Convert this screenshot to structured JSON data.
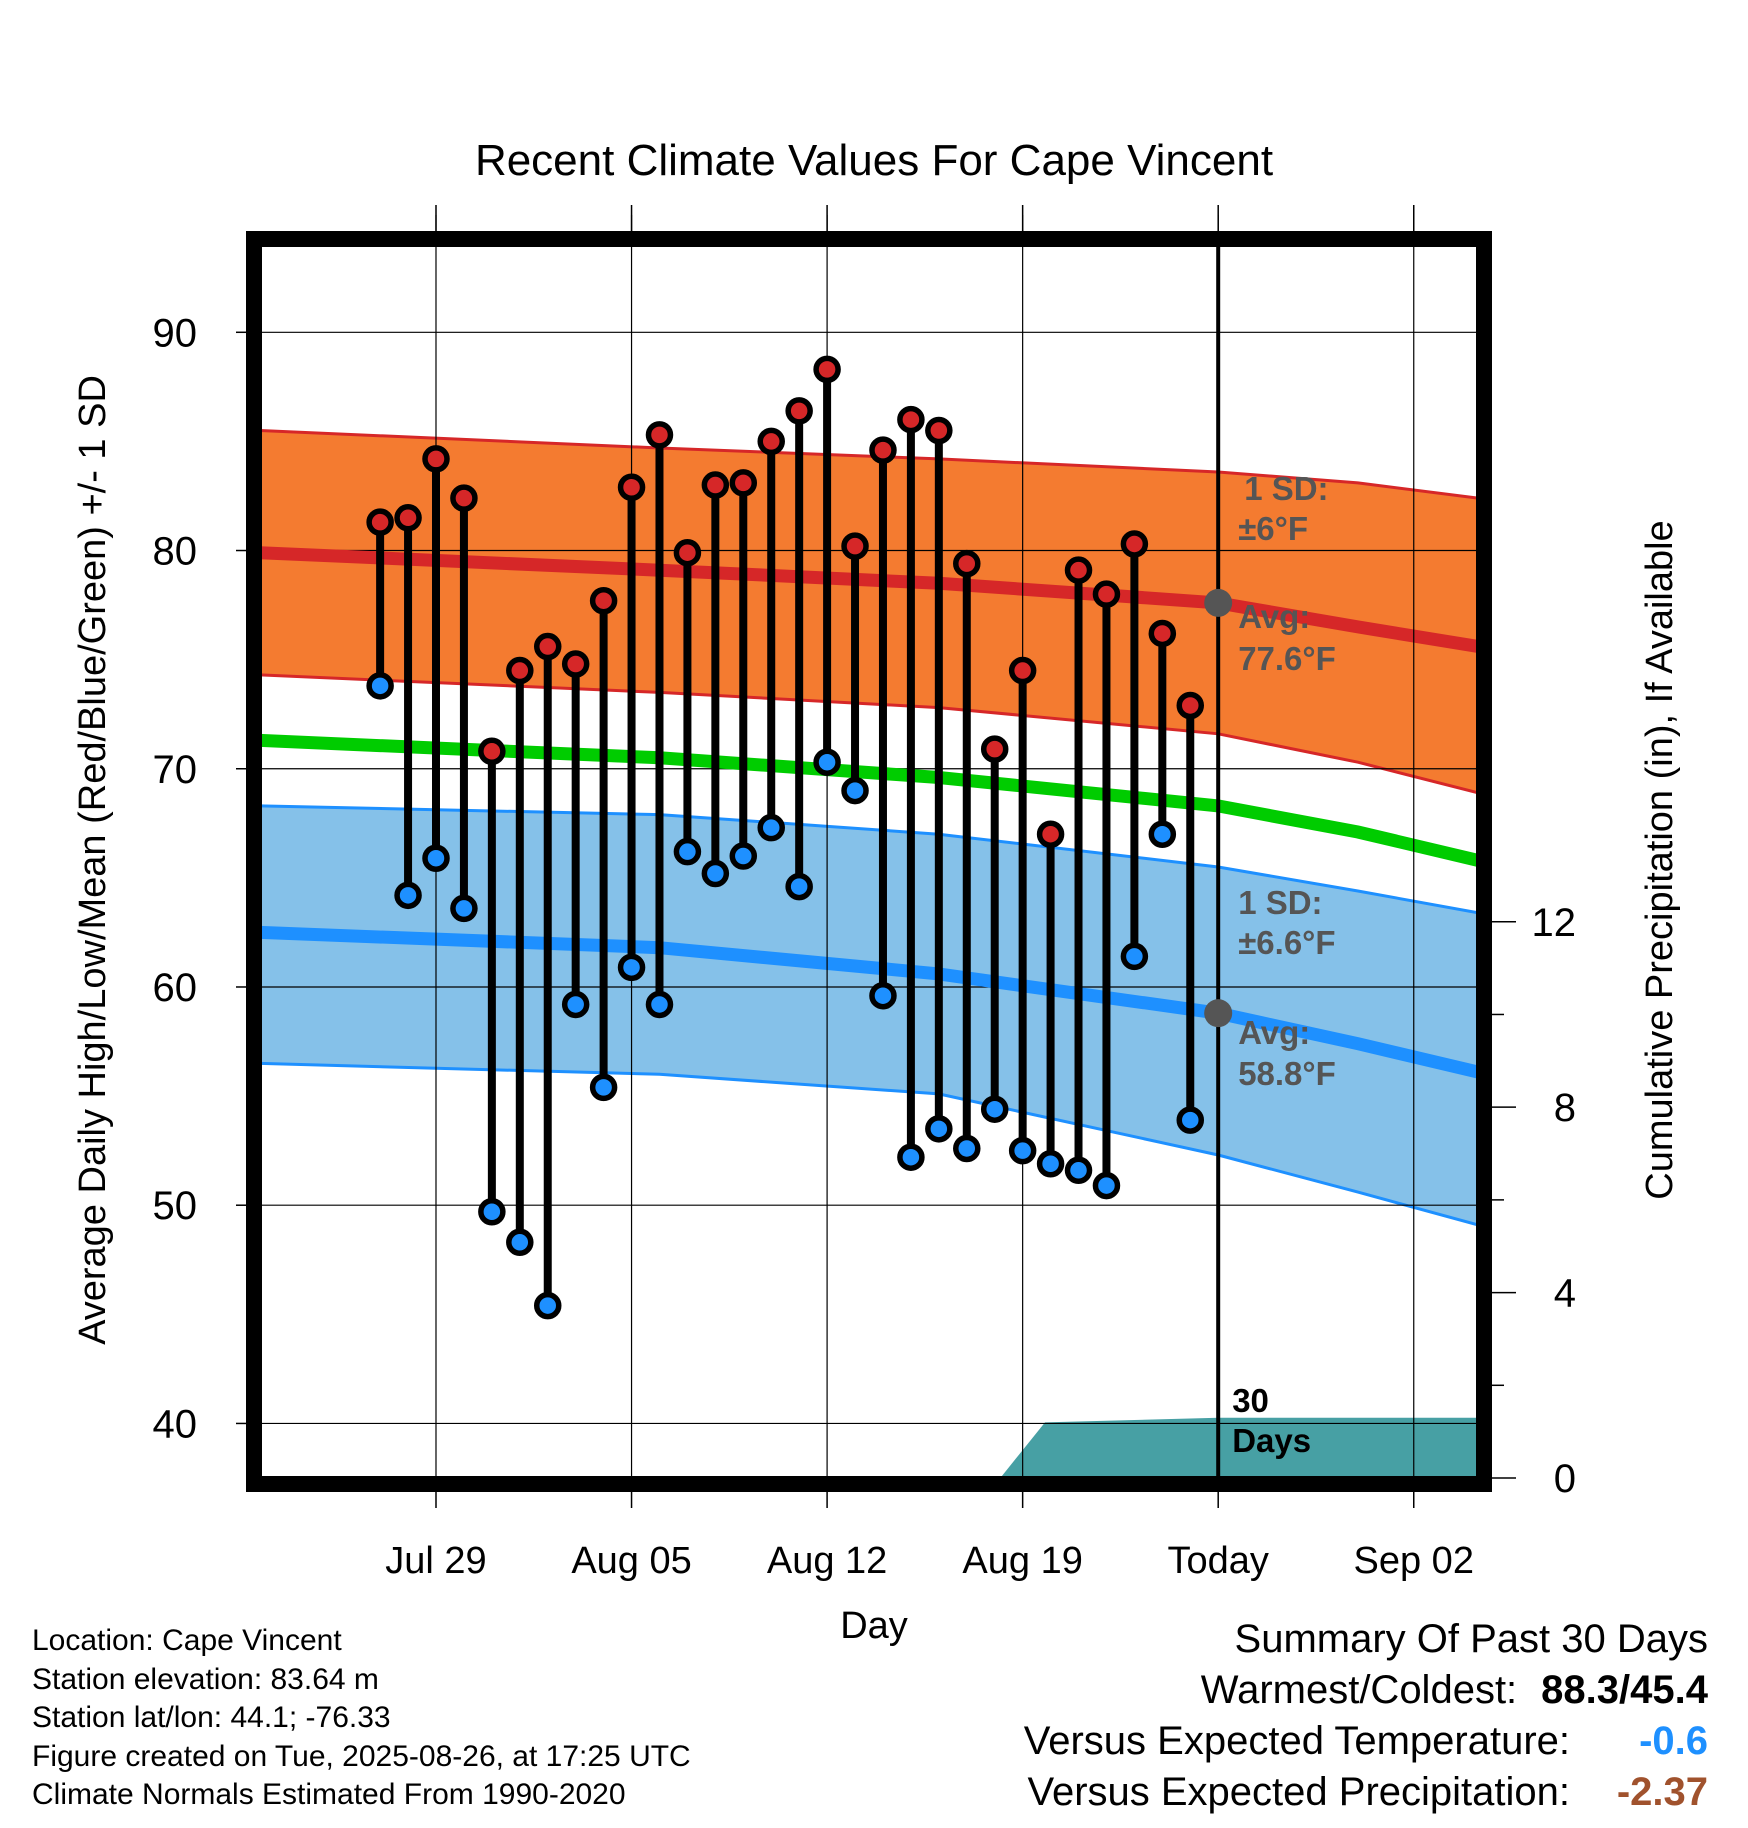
{
  "chart_data": {
    "type": "line",
    "title": "Recent Climate Values For Cape Vincent",
    "xlabel": "Day",
    "ylabel": "Average Daily High/Low/Mean (Red/Blue/Green) +/- 1 SD",
    "y2label": "Cumulative Precipitation (in), If Available",
    "ylim": [
      37.5,
      94
    ],
    "y2lim": [
      0,
      26.6
    ],
    "yticks": [
      40,
      50,
      60,
      70,
      80,
      90
    ],
    "y2ticks": [
      0,
      4,
      8,
      12
    ],
    "xlim_days": [
      -34.3,
      9.3
    ],
    "xticks": [
      {
        "day": -28,
        "label": "Jul 29"
      },
      {
        "day": -21,
        "label": "Aug 05"
      },
      {
        "day": -14,
        "label": "Aug 12"
      },
      {
        "day": -7,
        "label": "Aug 19"
      },
      {
        "day": 0,
        "label": "Today"
      },
      {
        "day": 7,
        "label": "Sep 02"
      }
    ],
    "grid": true,
    "days": [
      -30,
      -29,
      -28,
      -27,
      -26,
      -25,
      -24,
      -23,
      -22,
      -21,
      -20,
      -19,
      -18,
      -17,
      -16,
      -15,
      -14,
      -13,
      -12,
      -11,
      -10,
      -9,
      -8,
      -7,
      -6,
      -5,
      -4,
      -3,
      -2,
      -1
    ],
    "observed_high": [
      81.3,
      81.5,
      84.2,
      82.4,
      70.8,
      74.5,
      75.6,
      74.8,
      77.7,
      82.9,
      85.3,
      79.9,
      83.0,
      83.1,
      85.0,
      86.4,
      88.3,
      80.2,
      84.6,
      86.0,
      85.5,
      79.4,
      70.9,
      74.5,
      67.0,
      79.1,
      78.0,
      80.3,
      76.2,
      72.9
    ],
    "observed_low": [
      73.8,
      64.2,
      65.9,
      63.6,
      49.7,
      48.3,
      45.4,
      59.2,
      55.4,
      60.9,
      59.2,
      66.2,
      65.2,
      66.0,
      67.3,
      64.6,
      70.3,
      69.0,
      59.6,
      52.2,
      53.5,
      52.6,
      54.4,
      52.5,
      51.9,
      51.6,
      50.9,
      61.4,
      67.0,
      53.9
    ],
    "series": [
      {
        "name": "normal_high",
        "days": [
          -34.3,
          -20,
          -10,
          0,
          5,
          9.3
        ],
        "values": [
          79.9,
          79.1,
          78.5,
          77.6,
          76.5,
          75.6
        ],
        "sd_upper": [
          85.5,
          84.7,
          84.2,
          83.6,
          83.1,
          82.4
        ],
        "sd_lower": [
          74.3,
          73.5,
          72.8,
          71.6,
          70.3,
          68.9
        ]
      },
      {
        "name": "normal_mean",
        "days": [
          -34.3,
          -20,
          -10,
          0,
          5,
          9.3
        ],
        "values": [
          71.3,
          70.5,
          69.6,
          68.3,
          67.1,
          65.8
        ]
      },
      {
        "name": "normal_low",
        "days": [
          -34.3,
          -20,
          -10,
          0,
          5,
          9.3
        ],
        "values": [
          62.5,
          61.8,
          60.6,
          58.8,
          57.4,
          56.1
        ],
        "sd_upper": [
          68.3,
          67.9,
          67.0,
          65.5,
          64.4,
          63.4
        ],
        "sd_lower": [
          56.5,
          56.0,
          55.1,
          52.3,
          50.6,
          49.1
        ]
      },
      {
        "name": "cumulative_precipitation",
        "days": [
          -34.3,
          -7.8,
          -7,
          -6.2,
          0,
          9.3
        ],
        "values": [
          0,
          0,
          0.6,
          1.2,
          1.3,
          1.3
        ]
      }
    ],
    "colors": {
      "high_band": "#f47b30",
      "high_line": "#d62728",
      "low_band": "#85c1e9",
      "low_line": "#1e90ff",
      "mean_line": "#00cc00",
      "precip": "#47a0a4",
      "high_marker": "#d62728",
      "low_marker": "#1e90ff",
      "avg_marker": "#555555",
      "annotation_text": "#555555"
    },
    "annotations": {
      "high_sd_label": "1 SD:",
      "high_sd_value": "±6°F",
      "high_avg_label": "Avg:",
      "high_avg_value": "77.6°F",
      "low_sd_label": "1 SD:",
      "low_sd_value": "±6.6°F",
      "low_avg_label": "Avg:",
      "low_avg_value": "58.8°F",
      "window_count": "30",
      "window_unit": "Days"
    }
  },
  "info": {
    "location": "Location: Cape Vincent",
    "elevation": "Station elevation: 83.64 m",
    "latlon": "Station lat/lon: 44.1; -76.33",
    "created": "Figure created on Tue, 2025-08-26, at 17:25 UTC",
    "normals": "Climate Normals Estimated From 1990-2020"
  },
  "summary": {
    "title": "Summary Of Past 30 Days",
    "warmest_coldest_label": "Warmest/Coldest:",
    "warmest_coldest_value": "88.3/45.4",
    "temp_label": "Versus Expected Temperature:",
    "temp_value": "-0.6",
    "precip_label": "Versus Expected Precipitation:",
    "precip_value": "-2.37"
  }
}
